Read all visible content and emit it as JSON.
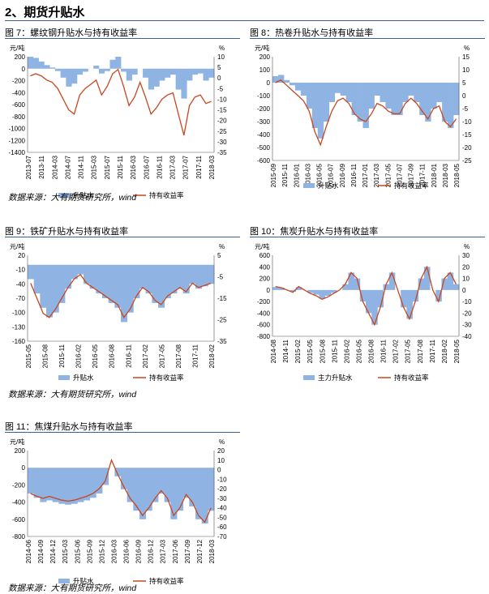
{
  "section": {
    "title": "2、期货升贴水"
  },
  "source_text": "数据来源：大有期货研究所，wind",
  "chart_data": [
    {
      "id": "fig7",
      "type": "area+line",
      "title": "图 7：螺纹钢升贴水与持有收益率",
      "ylabel_left": "元/吨",
      "ylabel_right": "%",
      "yticks_left": [
        200,
        0,
        -200,
        -400,
        -600,
        -800,
        -1000,
        -1200,
        -1400
      ],
      "ylim_left": [
        -1400,
        200
      ],
      "yticks_right": [
        10,
        5,
        0,
        -5,
        -10,
        -15,
        -20,
        -25,
        -30,
        -35
      ],
      "ylim_right": [
        -35,
        10
      ],
      "categories": [
        "2013-07",
        "2014-03",
        "2014-11",
        "2015-07",
        "2016-03",
        "2016-11",
        "2017-07",
        "2018-03"
      ],
      "x_labels": [
        "2013-07",
        "2013-11",
        "2014-03",
        "2014-07",
        "2014-11",
        "2015-03",
        "2015-07",
        "2015-11",
        "2016-03",
        "2016-07",
        "2016-11",
        "2017-03",
        "2017-07",
        "2017-11",
        "2018-03"
      ],
      "area_series": {
        "name": "升贴水",
        "color": "#8fb4e3",
        "values": [
          200,
          180,
          120,
          60,
          20,
          -40,
          -150,
          -300,
          -250,
          -100,
          -50,
          0,
          50,
          -80,
          -40,
          150,
          200,
          -50,
          -200,
          -100,
          0,
          -150,
          -350,
          -300,
          -200,
          -150,
          -100,
          -350,
          -500,
          -200,
          -100,
          -80,
          -200,
          -150
        ]
      },
      "line_series": {
        "name": "持有收益率",
        "color": "#c8461e",
        "values": [
          1,
          2,
          1,
          -1,
          -2,
          -5,
          -10,
          -15,
          -17,
          -8,
          -5,
          -3,
          -1,
          -8,
          -4,
          2,
          4,
          -4,
          -13,
          -9,
          -2,
          -9,
          -17,
          -14,
          -10,
          -8,
          -7,
          -17,
          -27,
          -13,
          -9,
          -8,
          -12,
          -11
        ]
      }
    },
    {
      "id": "fig8",
      "type": "area+line",
      "title": "图 8：热卷升贴水与持有收益率",
      "ylabel_left": "元/吨",
      "ylabel_right": "%",
      "yticks_left": [
        200,
        100,
        0,
        -100,
        -200,
        -300,
        -400,
        -500,
        -600
      ],
      "ylim_left": [
        -600,
        200
      ],
      "yticks_right": [
        15,
        10,
        5,
        0,
        -5,
        -10,
        -15,
        -20,
        -25
      ],
      "ylim_right": [
        -25,
        15
      ],
      "x_labels": [
        "2015-09",
        "2015-11",
        "2016-01",
        "2016-03",
        "2016-05",
        "2016-07",
        "2016-09",
        "2016-11",
        "2017-01",
        "2017-03",
        "2017-05",
        "2017-07",
        "2017-09",
        "2017-11",
        "2018-01",
        "2018-03",
        "2018-05"
      ],
      "area_series": {
        "name": "升贴水",
        "color": "#8fb4e3",
        "values": [
          50,
          60,
          20,
          -20,
          -60,
          -100,
          -200,
          -350,
          -430,
          -300,
          -150,
          -80,
          -100,
          -150,
          -250,
          -300,
          -350,
          -200,
          -100,
          -150,
          -200,
          -250,
          -250,
          -150,
          -100,
          -150,
          -250,
          -300,
          -200,
          -150,
          -300,
          -350,
          -250
        ]
      },
      "line_series": {
        "name": "持有收益率",
        "color": "#c8461e",
        "values": [
          5,
          6,
          4,
          2,
          0,
          -2,
          -6,
          -14,
          -19,
          -12,
          -6,
          -2,
          -1,
          -3,
          -7,
          -9,
          -10,
          -7,
          -3,
          -4,
          -6,
          -7,
          -7,
          -3,
          -1,
          -3,
          -6,
          -9,
          -5,
          -4,
          -10,
          -12,
          -9
        ]
      }
    },
    {
      "id": "fig9",
      "type": "area+line",
      "title": "图 9：铁矿升贴水与持有收益率",
      "ylabel_left": "元/吨",
      "ylabel_right": "%",
      "yticks_left": [
        20,
        -10,
        -40,
        -70,
        -100,
        -130,
        -160
      ],
      "ylim_left": [
        -160,
        20
      ],
      "yticks_right": [
        5,
        -5,
        -15,
        -25,
        -35
      ],
      "ylim_right": [
        -35,
        5
      ],
      "x_labels": [
        "2015-05",
        "2015-08",
        "2015-11",
        "2016-02",
        "2016-05",
        "2016-08",
        "2016-11",
        "2017-02",
        "2017-05",
        "2017-08",
        "2017-11",
        "2018-02"
      ],
      "area_series": {
        "name": "升贴水",
        "color": "#8fb4e3",
        "values": [
          -30,
          -60,
          -90,
          -110,
          -100,
          -80,
          -50,
          -30,
          -20,
          -40,
          -50,
          -60,
          -70,
          -80,
          -90,
          -120,
          -100,
          -70,
          -50,
          -60,
          -80,
          -90,
          -70,
          -60,
          -50,
          -60,
          -40,
          -50,
          -45,
          -40
        ]
      },
      "line_series": {
        "name": "持有收益率",
        "color": "#c8461e",
        "values": [
          -8,
          -15,
          -22,
          -24,
          -20,
          -15,
          -10,
          -6,
          -4,
          -8,
          -10,
          -12,
          -14,
          -16,
          -18,
          -24,
          -20,
          -14,
          -10,
          -12,
          -16,
          -18,
          -14,
          -12,
          -10,
          -12,
          -8,
          -10,
          -9,
          -8
        ]
      }
    },
    {
      "id": "fig10",
      "type": "area+line",
      "title": "图 10：焦炭升贴水与持有收益率",
      "ylabel_left": "元/吨",
      "ylabel_right": "%",
      "yticks_left": [
        600,
        400,
        200,
        0,
        -200,
        -400,
        -600,
        -800
      ],
      "ylim_left": [
        -800,
        600
      ],
      "yticks_right": [
        30,
        20,
        10,
        0,
        -10,
        -20,
        -30,
        -40
      ],
      "ylim_right": [
        -40,
        30
      ],
      "x_labels": [
        "2014-08",
        "2014-11",
        "2015-02",
        "2015-05",
        "2015-08",
        "2015-11",
        "2016-02",
        "2016-05",
        "2016-08",
        "2016-11",
        "2017-02",
        "2017-05",
        "2017-08",
        "2017-11",
        "2018-02",
        "2018-05"
      ],
      "area_series": {
        "name": "主力升贴水",
        "color": "#8fb4e3",
        "values": [
          50,
          40,
          0,
          -30,
          50,
          0,
          -50,
          -80,
          -150,
          -100,
          -50,
          0,
          100,
          300,
          200,
          -200,
          -400,
          -600,
          -300,
          100,
          300,
          0,
          -300,
          -500,
          -200,
          200,
          400,
          0,
          -200,
          200,
          300,
          100
        ]
      },
      "line_series": {
        "name": "持有收益率",
        "color": "#c8461e",
        "values": [
          3,
          2,
          0,
          -2,
          3,
          0,
          -3,
          -5,
          -8,
          -6,
          -3,
          0,
          5,
          15,
          10,
          -10,
          -20,
          -30,
          -15,
          5,
          15,
          0,
          -15,
          -25,
          -10,
          10,
          20,
          0,
          -10,
          10,
          15,
          5
        ]
      }
    },
    {
      "id": "fig11",
      "type": "area+line",
      "title": "图 11：焦煤升贴水与持有收益率",
      "ylabel_left": "元/吨",
      "ylabel_right": "%",
      "yticks_left": [
        200,
        0,
        -200,
        -400,
        -600,
        -800
      ],
      "ylim_left": [
        -800,
        200
      ],
      "yticks_right": [
        20,
        10,
        0,
        -10,
        -20,
        -30,
        -40,
        -50,
        -60,
        -70
      ],
      "ylim_right": [
        -70,
        20
      ],
      "x_labels": [
        "2014-06",
        "2014-09",
        "2014-12",
        "2015-03",
        "2015-06",
        "2015-09",
        "2015-12",
        "2016-03",
        "2016-06",
        "2016-09",
        "2016-12",
        "2017-03",
        "2017-06",
        "2017-09",
        "2017-12",
        "2018-03"
      ],
      "area_series": {
        "name": "升贴水",
        "color": "#8fb4e3",
        "values": [
          -300,
          -350,
          -400,
          -380,
          -400,
          -420,
          -430,
          -420,
          -400,
          -380,
          -350,
          -300,
          -200,
          0,
          -100,
          -250,
          -400,
          -500,
          -600,
          -500,
          -400,
          -300,
          -400,
          -600,
          -500,
          -350,
          -450,
          -600,
          -650,
          -500
        ]
      },
      "line_series": {
        "name": "持有收益率",
        "color": "#c8461e",
        "values": [
          -25,
          -28,
          -30,
          -28,
          -30,
          -32,
          -33,
          -32,
          -30,
          -28,
          -25,
          -20,
          -12,
          10,
          -5,
          -18,
          -30,
          -38,
          -48,
          -40,
          -30,
          -22,
          -30,
          -48,
          -40,
          -26,
          -34,
          -48,
          -55,
          -40
        ]
      }
    }
  ]
}
